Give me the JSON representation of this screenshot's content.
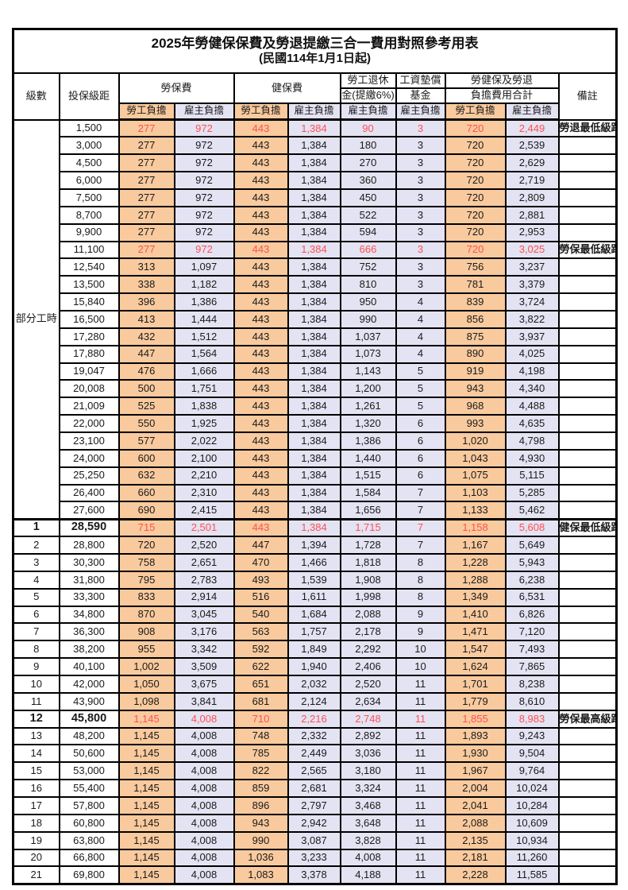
{
  "title": "2025年勞健保保費及勞退提繳三合一費用對照參考用表",
  "subtitle": "(民國114年1月1日起)",
  "header": {
    "level": "級數",
    "bracket": "投保級距",
    "labor_group": "勞保費",
    "health_group": "健保費",
    "pension_line1": "勞工退休",
    "pension_line2": "金(提繳6%)",
    "wage_line1": "工資墊償",
    "wage_line2": "基金",
    "total_line1": "勞健保及勞退",
    "total_line2": "負擔費用合計",
    "note": "備註",
    "employee_share": "勞工負擔",
    "employer_share": "雇主負擔"
  },
  "part_time_label": "部分工時",
  "colors": {
    "employee_bg": "#F9CA9E",
    "employer_bg": "#E4E3F3",
    "highlight_text": "#FF5050",
    "border": "#000000"
  },
  "rows": [
    {
      "level": "",
      "bracket": "1,500",
      "labor_employee": "277",
      "labor_employer": "972",
      "health_employee": "443",
      "health_employer": "1,384",
      "pension_employer": "90",
      "wage_fund_employer": "3",
      "total_employee": "720",
      "total_employer": "2,449",
      "note": "勞退最低級距",
      "red": true
    },
    {
      "level": "",
      "bracket": "3,000",
      "labor_employee": "277",
      "labor_employer": "972",
      "health_employee": "443",
      "health_employer": "1,384",
      "pension_employer": "180",
      "wage_fund_employer": "3",
      "total_employee": "720",
      "total_employer": "2,539",
      "note": ""
    },
    {
      "level": "",
      "bracket": "4,500",
      "labor_employee": "277",
      "labor_employer": "972",
      "health_employee": "443",
      "health_employer": "1,384",
      "pension_employer": "270",
      "wage_fund_employer": "3",
      "total_employee": "720",
      "total_employer": "2,629",
      "note": ""
    },
    {
      "level": "",
      "bracket": "6,000",
      "labor_employee": "277",
      "labor_employer": "972",
      "health_employee": "443",
      "health_employer": "1,384",
      "pension_employer": "360",
      "wage_fund_employer": "3",
      "total_employee": "720",
      "total_employer": "2,719",
      "note": ""
    },
    {
      "level": "",
      "bracket": "7,500",
      "labor_employee": "277",
      "labor_employer": "972",
      "health_employee": "443",
      "health_employer": "1,384",
      "pension_employer": "450",
      "wage_fund_employer": "3",
      "total_employee": "720",
      "total_employer": "2,809",
      "note": ""
    },
    {
      "level": "",
      "bracket": "8,700",
      "labor_employee": "277",
      "labor_employer": "972",
      "health_employee": "443",
      "health_employer": "1,384",
      "pension_employer": "522",
      "wage_fund_employer": "3",
      "total_employee": "720",
      "total_employer": "2,881",
      "note": ""
    },
    {
      "level": "",
      "bracket": "9,900",
      "labor_employee": "277",
      "labor_employer": "972",
      "health_employee": "443",
      "health_employer": "1,384",
      "pension_employer": "594",
      "wage_fund_employer": "3",
      "total_employee": "720",
      "total_employer": "2,953",
      "note": ""
    },
    {
      "level": "",
      "bracket": "11,100",
      "labor_employee": "277",
      "labor_employer": "972",
      "health_employee": "443",
      "health_employer": "1,384",
      "pension_employer": "666",
      "wage_fund_employer": "3",
      "total_employee": "720",
      "total_employer": "3,025",
      "note": "勞保最低級距",
      "red": true
    },
    {
      "level": "",
      "bracket": "12,540",
      "labor_employee": "313",
      "labor_employer": "1,097",
      "health_employee": "443",
      "health_employer": "1,384",
      "pension_employer": "752",
      "wage_fund_employer": "3",
      "total_employee": "756",
      "total_employer": "3,237",
      "note": ""
    },
    {
      "level": "",
      "bracket": "13,500",
      "labor_employee": "338",
      "labor_employer": "1,182",
      "health_employee": "443",
      "health_employer": "1,384",
      "pension_employer": "810",
      "wage_fund_employer": "3",
      "total_employee": "781",
      "total_employer": "3,379",
      "note": ""
    },
    {
      "level": "",
      "bracket": "15,840",
      "labor_employee": "396",
      "labor_employer": "1,386",
      "health_employee": "443",
      "health_employer": "1,384",
      "pension_employer": "950",
      "wage_fund_employer": "4",
      "total_employee": "839",
      "total_employer": "3,724",
      "note": ""
    },
    {
      "level": "",
      "bracket": "16,500",
      "labor_employee": "413",
      "labor_employer": "1,444",
      "health_employee": "443",
      "health_employer": "1,384",
      "pension_employer": "990",
      "wage_fund_employer": "4",
      "total_employee": "856",
      "total_employer": "3,822",
      "note": ""
    },
    {
      "level": "",
      "bracket": "17,280",
      "labor_employee": "432",
      "labor_employer": "1,512",
      "health_employee": "443",
      "health_employer": "1,384",
      "pension_employer": "1,037",
      "wage_fund_employer": "4",
      "total_employee": "875",
      "total_employer": "3,937",
      "note": ""
    },
    {
      "level": "",
      "bracket": "17,880",
      "labor_employee": "447",
      "labor_employer": "1,564",
      "health_employee": "443",
      "health_employer": "1,384",
      "pension_employer": "1,073",
      "wage_fund_employer": "4",
      "total_employee": "890",
      "total_employer": "4,025",
      "note": ""
    },
    {
      "level": "",
      "bracket": "19,047",
      "labor_employee": "476",
      "labor_employer": "1,666",
      "health_employee": "443",
      "health_employer": "1,384",
      "pension_employer": "1,143",
      "wage_fund_employer": "5",
      "total_employee": "919",
      "total_employer": "4,198",
      "note": ""
    },
    {
      "level": "",
      "bracket": "20,008",
      "labor_employee": "500",
      "labor_employer": "1,751",
      "health_employee": "443",
      "health_employer": "1,384",
      "pension_employer": "1,200",
      "wage_fund_employer": "5",
      "total_employee": "943",
      "total_employer": "4,340",
      "note": ""
    },
    {
      "level": "",
      "bracket": "21,009",
      "labor_employee": "525",
      "labor_employer": "1,838",
      "health_employee": "443",
      "health_employer": "1,384",
      "pension_employer": "1,261",
      "wage_fund_employer": "5",
      "total_employee": "968",
      "total_employer": "4,488",
      "note": ""
    },
    {
      "level": "",
      "bracket": "22,000",
      "labor_employee": "550",
      "labor_employer": "1,925",
      "health_employee": "443",
      "health_employer": "1,384",
      "pension_employer": "1,320",
      "wage_fund_employer": "6",
      "total_employee": "993",
      "total_employer": "4,635",
      "note": ""
    },
    {
      "level": "",
      "bracket": "23,100",
      "labor_employee": "577",
      "labor_employer": "2,022",
      "health_employee": "443",
      "health_employer": "1,384",
      "pension_employer": "1,386",
      "wage_fund_employer": "6",
      "total_employee": "1,020",
      "total_employer": "4,798",
      "note": ""
    },
    {
      "level": "",
      "bracket": "24,000",
      "labor_employee": "600",
      "labor_employer": "2,100",
      "health_employee": "443",
      "health_employer": "1,384",
      "pension_employer": "1,440",
      "wage_fund_employer": "6",
      "total_employee": "1,043",
      "total_employer": "4,930",
      "note": ""
    },
    {
      "level": "",
      "bracket": "25,250",
      "labor_employee": "632",
      "labor_employer": "2,210",
      "health_employee": "443",
      "health_employer": "1,384",
      "pension_employer": "1,515",
      "wage_fund_employer": "6",
      "total_employee": "1,075",
      "total_employer": "5,115",
      "note": ""
    },
    {
      "level": "",
      "bracket": "26,400",
      "labor_employee": "660",
      "labor_employer": "2,310",
      "health_employee": "443",
      "health_employer": "1,384",
      "pension_employer": "1,584",
      "wage_fund_employer": "7",
      "total_employee": "1,103",
      "total_employer": "5,285",
      "note": ""
    },
    {
      "level": "",
      "bracket": "27,600",
      "labor_employee": "690",
      "labor_employer": "2,415",
      "health_employee": "443",
      "health_employer": "1,384",
      "pension_employer": "1,656",
      "wage_fund_employer": "7",
      "total_employee": "1,133",
      "total_employer": "5,462",
      "note": ""
    },
    {
      "level": "1",
      "bracket": "28,590",
      "labor_employee": "715",
      "labor_employer": "2,501",
      "health_employee": "443",
      "health_employer": "1,384",
      "pension_employer": "1,715",
      "wage_fund_employer": "7",
      "total_employee": "1,158",
      "total_employer": "5,608",
      "note": "健保最低級距",
      "red": true,
      "bold": true
    },
    {
      "level": "2",
      "bracket": "28,800",
      "labor_employee": "720",
      "labor_employer": "2,520",
      "health_employee": "447",
      "health_employer": "1,394",
      "pension_employer": "1,728",
      "wage_fund_employer": "7",
      "total_employee": "1,167",
      "total_employer": "5,649",
      "note": ""
    },
    {
      "level": "3",
      "bracket": "30,300",
      "labor_employee": "758",
      "labor_employer": "2,651",
      "health_employee": "470",
      "health_employer": "1,466",
      "pension_employer": "1,818",
      "wage_fund_employer": "8",
      "total_employee": "1,228",
      "total_employer": "5,943",
      "note": ""
    },
    {
      "level": "4",
      "bracket": "31,800",
      "labor_employee": "795",
      "labor_employer": "2,783",
      "health_employee": "493",
      "health_employer": "1,539",
      "pension_employer": "1,908",
      "wage_fund_employer": "8",
      "total_employee": "1,288",
      "total_employer": "6,238",
      "note": ""
    },
    {
      "level": "5",
      "bracket": "33,300",
      "labor_employee": "833",
      "labor_employer": "2,914",
      "health_employee": "516",
      "health_employer": "1,611",
      "pension_employer": "1,998",
      "wage_fund_employer": "8",
      "total_employee": "1,349",
      "total_employer": "6,531",
      "note": ""
    },
    {
      "level": "6",
      "bracket": "34,800",
      "labor_employee": "870",
      "labor_employer": "3,045",
      "health_employee": "540",
      "health_employer": "1,684",
      "pension_employer": "2,088",
      "wage_fund_employer": "9",
      "total_employee": "1,410",
      "total_employer": "6,826",
      "note": ""
    },
    {
      "level": "7",
      "bracket": "36,300",
      "labor_employee": "908",
      "labor_employer": "3,176",
      "health_employee": "563",
      "health_employer": "1,757",
      "pension_employer": "2,178",
      "wage_fund_employer": "9",
      "total_employee": "1,471",
      "total_employer": "7,120",
      "note": ""
    },
    {
      "level": "8",
      "bracket": "38,200",
      "labor_employee": "955",
      "labor_employer": "3,342",
      "health_employee": "592",
      "health_employer": "1,849",
      "pension_employer": "2,292",
      "wage_fund_employer": "10",
      "total_employee": "1,547",
      "total_employer": "7,493",
      "note": ""
    },
    {
      "level": "9",
      "bracket": "40,100",
      "labor_employee": "1,002",
      "labor_employer": "3,509",
      "health_employee": "622",
      "health_employer": "1,940",
      "pension_employer": "2,406",
      "wage_fund_employer": "10",
      "total_employee": "1,624",
      "total_employer": "7,865",
      "note": ""
    },
    {
      "level": "10",
      "bracket": "42,000",
      "labor_employee": "1,050",
      "labor_employer": "3,675",
      "health_employee": "651",
      "health_employer": "2,032",
      "pension_employer": "2,520",
      "wage_fund_employer": "11",
      "total_employee": "1,701",
      "total_employer": "8,238",
      "note": ""
    },
    {
      "level": "11",
      "bracket": "43,900",
      "labor_employee": "1,098",
      "labor_employer": "3,841",
      "health_employee": "681",
      "health_employer": "2,124",
      "pension_employer": "2,634",
      "wage_fund_employer": "11",
      "total_employee": "1,779",
      "total_employer": "8,610",
      "note": ""
    },
    {
      "level": "12",
      "bracket": "45,800",
      "labor_employee": "1,145",
      "labor_employer": "4,008",
      "health_employee": "710",
      "health_employer": "2,216",
      "pension_employer": "2,748",
      "wage_fund_employer": "11",
      "total_employee": "1,855",
      "total_employer": "8,983",
      "note": "勞保最高級距",
      "red": true,
      "bold": true
    },
    {
      "level": "13",
      "bracket": "48,200",
      "labor_employee": "1,145",
      "labor_employer": "4,008",
      "health_employee": "748",
      "health_employer": "2,332",
      "pension_employer": "2,892",
      "wage_fund_employer": "11",
      "total_employee": "1,893",
      "total_employer": "9,243",
      "note": ""
    },
    {
      "level": "14",
      "bracket": "50,600",
      "labor_employee": "1,145",
      "labor_employer": "4,008",
      "health_employee": "785",
      "health_employer": "2,449",
      "pension_employer": "3,036",
      "wage_fund_employer": "11",
      "total_employee": "1,930",
      "total_employer": "9,504",
      "note": ""
    },
    {
      "level": "15",
      "bracket": "53,000",
      "labor_employee": "1,145",
      "labor_employer": "4,008",
      "health_employee": "822",
      "health_employer": "2,565",
      "pension_employer": "3,180",
      "wage_fund_employer": "11",
      "total_employee": "1,967",
      "total_employer": "9,764",
      "note": ""
    },
    {
      "level": "16",
      "bracket": "55,400",
      "labor_employee": "1,145",
      "labor_employer": "4,008",
      "health_employee": "859",
      "health_employer": "2,681",
      "pension_employer": "3,324",
      "wage_fund_employer": "11",
      "total_employee": "2,004",
      "total_employer": "10,024",
      "note": ""
    },
    {
      "level": "17",
      "bracket": "57,800",
      "labor_employee": "1,145",
      "labor_employer": "4,008",
      "health_employee": "896",
      "health_employer": "2,797",
      "pension_employer": "3,468",
      "wage_fund_employer": "11",
      "total_employee": "2,041",
      "total_employer": "10,284",
      "note": ""
    },
    {
      "level": "18",
      "bracket": "60,800",
      "labor_employee": "1,145",
      "labor_employer": "4,008",
      "health_employee": "943",
      "health_employer": "2,942",
      "pension_employer": "3,648",
      "wage_fund_employer": "11",
      "total_employee": "2,088",
      "total_employer": "10,609",
      "note": ""
    },
    {
      "level": "19",
      "bracket": "63,800",
      "labor_employee": "1,145",
      "labor_employer": "4,008",
      "health_employee": "990",
      "health_employer": "3,087",
      "pension_employer": "3,828",
      "wage_fund_employer": "11",
      "total_employee": "2,135",
      "total_employer": "10,934",
      "note": ""
    },
    {
      "level": "20",
      "bracket": "66,800",
      "labor_employee": "1,145",
      "labor_employer": "4,008",
      "health_employee": "1,036",
      "health_employer": "3,233",
      "pension_employer": "4,008",
      "wage_fund_employer": "11",
      "total_employee": "2,181",
      "total_employer": "11,260",
      "note": ""
    },
    {
      "level": "21",
      "bracket": "69,800",
      "labor_employee": "1,145",
      "labor_employer": "4,008",
      "health_employee": "1,083",
      "health_employer": "3,378",
      "pension_employer": "4,188",
      "wage_fund_employer": "11",
      "total_employee": "2,228",
      "total_employer": "11,585",
      "note": ""
    }
  ]
}
